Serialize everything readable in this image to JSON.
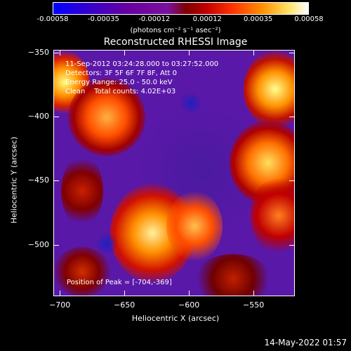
{
  "colorbar": {
    "ticks": [
      "-0.00058",
      "-0.00035",
      "-0.00012",
      "0.00012",
      "0.00035",
      "0.00058"
    ],
    "label": "(photons cm⁻² s⁻¹ asec⁻²)"
  },
  "chart_data": {
    "type": "heatmap",
    "title": "Reconstructed RHESSI Image",
    "xlabel": "Heliocentric X (arcsec)",
    "ylabel": "Heliocentric Y (arcsec)",
    "xlim": [
      -705,
      -518
    ],
    "ylim": [
      -540,
      -348
    ],
    "x_ticks": [
      "-700",
      "-650",
      "-600",
      "-550"
    ],
    "y_ticks": [
      "-350",
      "-400",
      "-450",
      "-500"
    ],
    "color_range": [
      -0.00058,
      0.00058
    ],
    "annotations": {
      "line1": "11-Sep-2012 03:24:28.000 to 03:27:52.000",
      "line2": "Detectors: 3F 5F 6F 7F 8F, Att 0",
      "line3": "Energy Range: 25.0 - 50.0 keV",
      "line4": "Clean    Total counts: 4.02E+03",
      "peak": "Position of Peak = [-704,-369]"
    }
  },
  "timestamp": "14-May-2022 01:57"
}
